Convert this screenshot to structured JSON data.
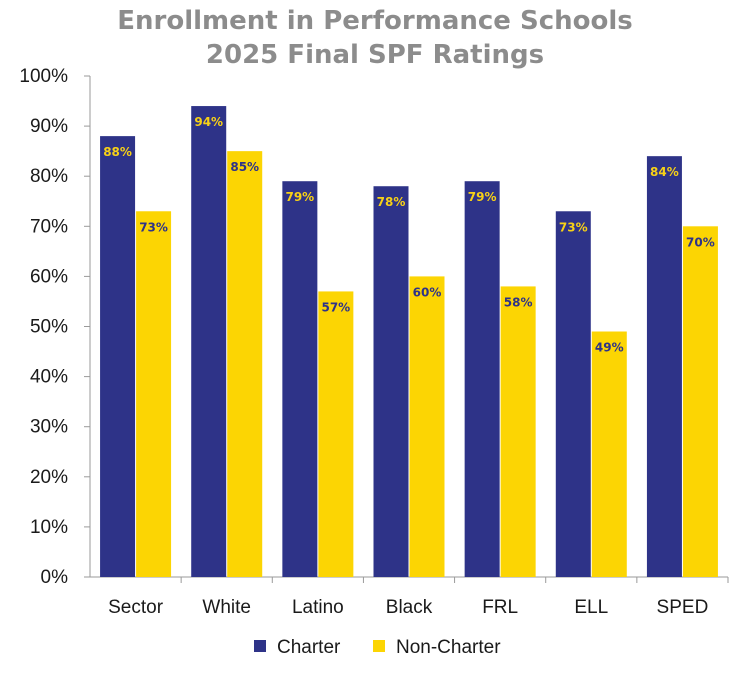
{
  "chart_data": {
    "type": "bar",
    "title": "Enrollment in Performance Schools",
    "subtitle": "2025 Final SPF Ratings",
    "categories": [
      "Sector",
      "White",
      "Latino",
      "Black",
      "FRL",
      "ELL",
      "SPED"
    ],
    "series": [
      {
        "name": "Charter",
        "color": "#2e3388",
        "values": [
          88,
          94,
          79,
          78,
          79,
          73,
          84
        ],
        "labels": [
          "88%",
          "94%",
          "79%",
          "78%",
          "79%",
          "73%",
          "84%"
        ],
        "label_color": "#f7d117"
      },
      {
        "name": "Non-Charter",
        "color": "#fcd503",
        "values": [
          73,
          85,
          57,
          60,
          58,
          49,
          70
        ],
        "labels": [
          "73%",
          "85%",
          "57%",
          "60%",
          "58%",
          "49%",
          "70%"
        ],
        "label_color": "#2e3388"
      }
    ],
    "ylim": [
      0,
      100
    ],
    "yticks": [
      "0%",
      "10%",
      "20%",
      "30%",
      "40%",
      "50%",
      "60%",
      "70%",
      "80%",
      "90%",
      "100%"
    ],
    "xlabel": "",
    "ylabel": "",
    "grid": false,
    "legend_position": "bottom"
  }
}
